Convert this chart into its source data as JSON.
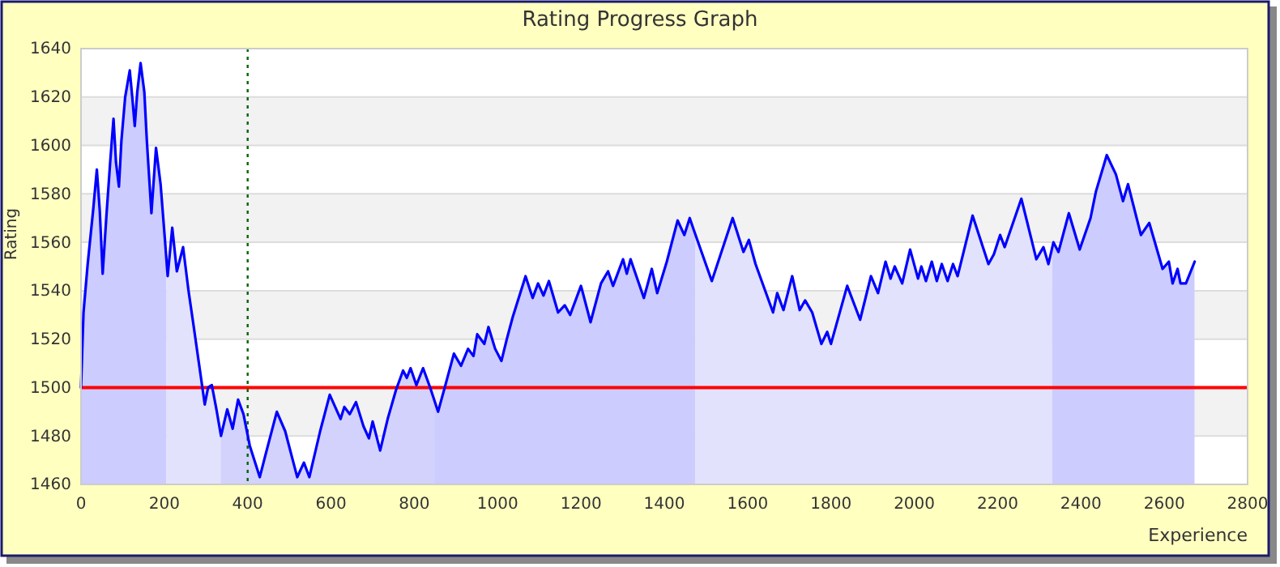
{
  "chart_data": {
    "type": "line",
    "title": "Rating Progress Graph",
    "xlabel": "Experience",
    "ylabel": "Rating",
    "xlim": [
      0,
      2800
    ],
    "xticks": [
      0,
      200,
      400,
      600,
      800,
      1000,
      1200,
      1400,
      1600,
      1800,
      2000,
      2200,
      2400,
      2600,
      2800
    ],
    "ylim": [
      1460,
      1640
    ],
    "yticks": [
      1460,
      1480,
      1500,
      1520,
      1540,
      1560,
      1580,
      1600,
      1620,
      1640
    ],
    "grid": "y",
    "marker": "none",
    "line_style": "solid",
    "ref_lines": [
      {
        "axis": "y",
        "value": 1500,
        "color": "#ff0000",
        "line_style": "solid"
      },
      {
        "axis": "x",
        "value": 400,
        "color": "#006600",
        "line_style": "dotted"
      }
    ],
    "bands": [
      {
        "axis": "x",
        "from": 0,
        "to": 205,
        "color": "#ccccff"
      },
      {
        "axis": "x",
        "from": 205,
        "to": 335,
        "color": "#e2e2fc"
      },
      {
        "axis": "x",
        "from": 335,
        "to": 848,
        "color": "#d2d2fd"
      },
      {
        "axis": "x",
        "from": 848,
        "to": 1474,
        "color": "#ccccff"
      },
      {
        "axis": "x",
        "from": 1474,
        "to": 2331,
        "color": "#e2e2fc"
      },
      {
        "axis": "x",
        "from": 2331,
        "to": 2673,
        "color": "#ccccff"
      }
    ],
    "series": [
      {
        "color": "#0000ff",
        "x": [
          0,
          6,
          16,
          29,
          38,
          45,
          52,
          61,
          70,
          78,
          84,
          91,
          97,
          106,
          117,
          123,
          129,
          135,
          143,
          152,
          158,
          169,
          180,
          191,
          201,
          208,
          219,
          230,
          245,
          258,
          269,
          288,
          297,
          305,
          314,
          325,
          336,
          351,
          364,
          377,
          390,
          405,
          429,
          444,
          470,
          490,
          519,
          535,
          548,
          574,
          597,
          623,
          632,
          645,
          660,
          678,
          691,
          700,
          718,
          736,
          756,
          773,
          782,
          791,
          805,
          821,
          838,
          857,
          873,
          895,
          912,
          929,
          942,
          951,
          968,
          978,
          994,
          1009,
          1022,
          1036,
          1067,
          1084,
          1097,
          1110,
          1123,
          1145,
          1161,
          1174,
          1200,
          1223,
          1248,
          1265,
          1277,
          1301,
          1310,
          1319,
          1335,
          1351,
          1370,
          1383,
          1406,
          1432,
          1448,
          1461,
          1471,
          1514,
          1564,
          1590,
          1603,
          1619,
          1661,
          1671,
          1686,
          1707,
          1725,
          1738,
          1755,
          1777,
          1791,
          1800,
          1839,
          1870,
          1896,
          1913,
          1931,
          1943,
          1953,
          1971,
          1990,
          2009,
          2017,
          2028,
          2042,
          2054,
          2066,
          2080,
          2093,
          2104,
          2140,
          2178,
          2191,
          2206,
          2217,
          2257,
          2293,
          2310,
          2322,
          2334,
          2346,
          2371,
          2397,
          2423,
          2436,
          2462,
          2484,
          2501,
          2513,
          2544,
          2564,
          2596,
          2611,
          2620,
          2632,
          2639,
          2652,
          2673
        ],
        "values": [
          1500,
          1531,
          1551,
          1573,
          1590,
          1573,
          1547,
          1571,
          1593,
          1611,
          1593,
          1583,
          1602,
          1620,
          1631,
          1620,
          1608,
          1622,
          1634,
          1622,
          1602,
          1572,
          1599,
          1584,
          1562,
          1546,
          1566,
          1548,
          1558,
          1540,
          1527,
          1504,
          1493,
          1500,
          1501,
          1491,
          1480,
          1491,
          1483,
          1495,
          1489,
          1476,
          1463,
          1473,
          1490,
          1482,
          1463,
          1469,
          1463,
          1482,
          1497,
          1487,
          1492,
          1489,
          1494,
          1484,
          1479,
          1486,
          1474,
          1487,
          1499,
          1507,
          1504,
          1508,
          1501,
          1508,
          1500,
          1490,
          1500,
          1514,
          1509,
          1516,
          1513,
          1522,
          1518,
          1525,
          1516,
          1511,
          1520,
          1529,
          1546,
          1537,
          1543,
          1538,
          1544,
          1531,
          1534,
          1530,
          1542,
          1527,
          1543,
          1548,
          1542,
          1553,
          1547,
          1553,
          1545,
          1537,
          1549,
          1539,
          1552,
          1569,
          1563,
          1570,
          1565,
          1544,
          1570,
          1556,
          1561,
          1551,
          1531,
          1539,
          1532,
          1546,
          1532,
          1536,
          1531,
          1518,
          1523,
          1518,
          1542,
          1528,
          1546,
          1539,
          1552,
          1545,
          1550,
          1543,
          1557,
          1545,
          1550,
          1544,
          1552,
          1544,
          1551,
          1544,
          1551,
          1546,
          1571,
          1551,
          1555,
          1563,
          1558,
          1578,
          1553,
          1558,
          1551,
          1560,
          1556,
          1572,
          1557,
          1570,
          1581,
          1596,
          1588,
          1577,
          1584,
          1563,
          1568,
          1549,
          1552,
          1543,
          1549,
          1543,
          1543,
          1552
        ]
      }
    ]
  }
}
